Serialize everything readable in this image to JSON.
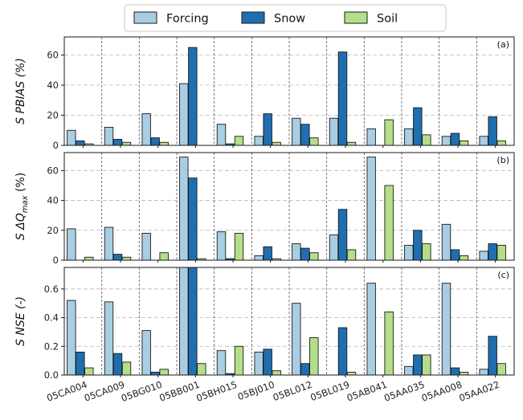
{
  "legend": {
    "placement": "top-center",
    "items": [
      {
        "label": "Forcing",
        "color": "#a9cde3"
      },
      {
        "label": "Snow",
        "color": "#1f6fb0"
      },
      {
        "label": "Soil",
        "color": "#b4df8a"
      }
    ]
  },
  "chart_data": [
    {
      "type": "bar",
      "panel_label": "(a)",
      "ylabel": "S PBIAS (%)",
      "ylim": [
        0,
        72
      ],
      "yticks": [
        0,
        20,
        40,
        60
      ],
      "grid": true,
      "categories": [
        "05CA004",
        "05CA009",
        "05BG010",
        "05BB001",
        "05BH015",
        "05BJ010",
        "05BL012",
        "05BL019",
        "05AB041",
        "05AA035",
        "05AA008",
        "05AA022"
      ],
      "series": [
        {
          "name": "Forcing",
          "values": [
            10,
            12,
            21,
            41,
            14,
            6,
            18,
            18,
            11,
            11,
            6,
            6
          ]
        },
        {
          "name": "Snow",
          "values": [
            3,
            4,
            5,
            65,
            1,
            21,
            14,
            62,
            0,
            25,
            8,
            19
          ]
        },
        {
          "name": "Soil",
          "values": [
            1,
            2,
            2,
            0,
            6,
            2,
            5,
            2,
            17,
            7,
            3,
            3
          ]
        }
      ]
    },
    {
      "type": "bar",
      "panel_label": "(b)",
      "ylabel": "S ΔQ_max (%)",
      "ylim": [
        0,
        72
      ],
      "yticks": [
        0,
        20,
        40,
        60
      ],
      "grid": true,
      "categories": [
        "05CA004",
        "05CA009",
        "05BG010",
        "05BB001",
        "05BH015",
        "05BJ010",
        "05BL012",
        "05BL019",
        "05AB041",
        "05AA035",
        "05AA008",
        "05AA022"
      ],
      "series": [
        {
          "name": "Forcing",
          "values": [
            21,
            22,
            18,
            69,
            19,
            3,
            11,
            17,
            69,
            10,
            24,
            6
          ]
        },
        {
          "name": "Snow",
          "values": [
            0,
            4,
            0,
            55,
            1,
            9,
            8,
            34,
            0,
            20,
            7,
            11
          ]
        },
        {
          "name": "Soil",
          "values": [
            2,
            2,
            5,
            1,
            18,
            1,
            5,
            7,
            50,
            11,
            3,
            10
          ]
        }
      ]
    },
    {
      "type": "bar",
      "panel_label": "(c)",
      "ylabel": "S NSE (-)",
      "ylim": [
        0,
        0.75
      ],
      "yticks": [
        0.0,
        0.2,
        0.4,
        0.6
      ],
      "grid": true,
      "categories": [
        "05CA004",
        "05CA009",
        "05BG010",
        "05BB001",
        "05BH015",
        "05BJ010",
        "05BL012",
        "05BL019",
        "05AB041",
        "05AA035",
        "05AA008",
        "05AA022"
      ],
      "series": [
        {
          "name": "Forcing",
          "values": [
            0.52,
            0.51,
            0.31,
            0.75,
            0.17,
            0.16,
            0.5,
            0.0,
            0.64,
            0.06,
            0.64,
            0.04
          ]
        },
        {
          "name": "Snow",
          "values": [
            0.16,
            0.15,
            0.02,
            0.75,
            0.01,
            0.18,
            0.08,
            0.33,
            0.0,
            0.14,
            0.05,
            0.27
          ]
        },
        {
          "name": "Soil",
          "values": [
            0.05,
            0.09,
            0.04,
            0.08,
            0.2,
            0.03,
            0.26,
            0.02,
            0.44,
            0.14,
            0.02,
            0.08
          ]
        }
      ]
    }
  ]
}
